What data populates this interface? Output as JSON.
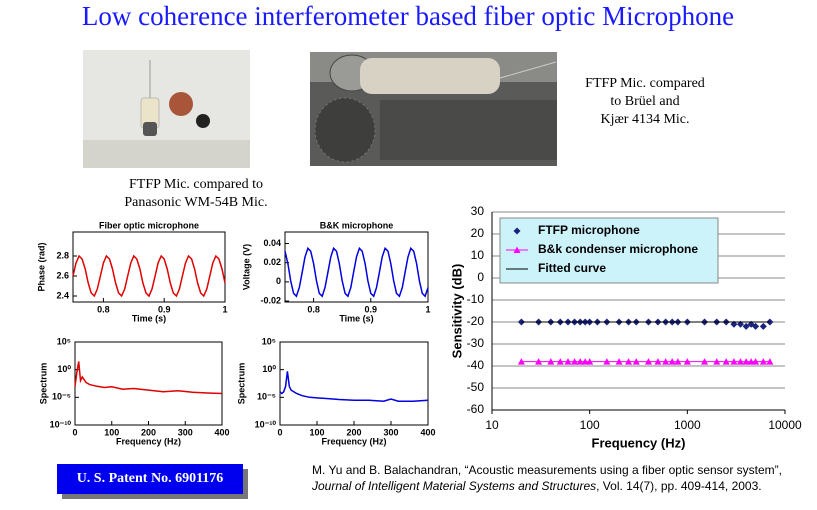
{
  "title": "Low coherence interferometer based fiber optic Microphone",
  "photo_captions": [
    [
      "FTFP Mic. compared to",
      "Panasonic WM-54B Mic."
    ],
    [
      "FTFP Mic. compared",
      "to Brüel and",
      "Kjær 4134 Mic."
    ]
  ],
  "chart_data": [
    {
      "type": "line",
      "title": "Fiber optic microphone",
      "x_label": "Time (s)",
      "y_label": "Phase (rad)",
      "xlim": [
        0.75,
        1.0
      ],
      "xticks": [
        0.8,
        0.9,
        1
      ],
      "ylim": [
        2.34,
        3.04
      ],
      "yticks": [
        2.4,
        2.6,
        2.8
      ],
      "series": [
        {
          "color": "#e00000",
          "x": [
            0.75,
            0.755,
            0.76,
            0.765,
            0.77,
            0.775,
            0.78,
            0.785,
            0.79,
            0.795,
            0.8,
            0.805,
            0.81,
            0.815,
            0.82,
            0.825,
            0.83,
            0.835,
            0.84,
            0.845,
            0.85,
            0.855,
            0.86,
            0.865,
            0.87,
            0.875,
            0.88,
            0.885,
            0.89,
            0.895,
            0.9,
            0.905,
            0.91,
            0.915,
            0.92,
            0.925,
            0.93,
            0.935,
            0.94,
            0.945,
            0.95,
            0.955,
            0.96,
            0.965,
            0.97,
            0.975,
            0.98,
            0.985,
            0.99,
            0.995,
            1.0
          ],
          "values": [
            2.6,
            2.73,
            2.8,
            2.77,
            2.67,
            2.53,
            2.43,
            2.4,
            2.47,
            2.6,
            2.73,
            2.8,
            2.77,
            2.67,
            2.53,
            2.43,
            2.4,
            2.47,
            2.6,
            2.73,
            2.8,
            2.77,
            2.67,
            2.53,
            2.43,
            2.4,
            2.47,
            2.6,
            2.73,
            2.8,
            2.77,
            2.67,
            2.53,
            2.43,
            2.4,
            2.47,
            2.6,
            2.73,
            2.8,
            2.77,
            2.67,
            2.53,
            2.43,
            2.4,
            2.47,
            2.6,
            2.73,
            2.8,
            2.77,
            2.67,
            2.53
          ]
        }
      ]
    },
    {
      "type": "line",
      "title": "B&K microphone",
      "x_label": "Time (s)",
      "y_label": "Voltage (V)",
      "xlim": [
        0.75,
        1.0
      ],
      "xticks": [
        0.8,
        0.9,
        1
      ],
      "ylim": [
        -0.021,
        0.052
      ],
      "yticks": [
        -0.02,
        0,
        0.02,
        0.04
      ],
      "series": [
        {
          "color": "#0000e0",
          "x": [
            0.75,
            0.755,
            0.76,
            0.765,
            0.77,
            0.775,
            0.78,
            0.785,
            0.79,
            0.795,
            0.8,
            0.805,
            0.81,
            0.815,
            0.82,
            0.825,
            0.83,
            0.835,
            0.84,
            0.845,
            0.85,
            0.855,
            0.86,
            0.865,
            0.87,
            0.875,
            0.88,
            0.885,
            0.89,
            0.895,
            0.9,
            0.905,
            0.91,
            0.915,
            0.92,
            0.925,
            0.93,
            0.935,
            0.94,
            0.945,
            0.95,
            0.955,
            0.96,
            0.965,
            0.97,
            0.975,
            0.98,
            0.985,
            0.99,
            0.995,
            1.0
          ],
          "values": [
            0.032,
            0.019,
            0.001,
            -0.012,
            -0.015,
            -0.006,
            0.01,
            0.026,
            0.035,
            0.032,
            0.019,
            0.001,
            -0.012,
            -0.015,
            -0.006,
            0.01,
            0.026,
            0.035,
            0.032,
            0.019,
            0.001,
            -0.012,
            -0.015,
            -0.006,
            0.01,
            0.026,
            0.035,
            0.032,
            0.019,
            0.001,
            -0.012,
            -0.015,
            -0.006,
            0.01,
            0.026,
            0.035,
            0.032,
            0.019,
            0.001,
            -0.012,
            -0.015,
            -0.006,
            0.01,
            0.026,
            0.035,
            0.032,
            0.019,
            0.001,
            -0.012,
            -0.015,
            -0.006
          ]
        }
      ]
    },
    {
      "type": "line",
      "x_label": "Frequency (Hz)",
      "y_label": "Spectrum",
      "log_y": true,
      "xlim": [
        0,
        400
      ],
      "xticks": [
        0,
        100,
        200,
        300,
        400
      ],
      "ylim": [
        1e-10,
        100000
      ],
      "yticks": [
        {
          "value": 1e-10,
          "label": "10⁻¹⁰"
        },
        {
          "value": 1e-05,
          "label": "10⁻⁵"
        },
        {
          "value": 1,
          "label": "10⁰"
        },
        {
          "value": 100000,
          "label": "10⁵"
        }
      ],
      "series": [
        {
          "color": "#e00000",
          "x": [
            0,
            5,
            10,
            15,
            20,
            30,
            40,
            60,
            80,
            100,
            130,
            160,
            200,
            240,
            280,
            320,
            360,
            400
          ],
          "values": [
            0.001,
            0.3,
            30,
            0.01,
            0.05,
            0.005,
            0.002,
            0.001,
            0.0006,
            0.0008,
            0.0003,
            0.0004,
            0.0002,
            0.0001,
            0.00015,
            8e-05,
            6e-05,
            5e-05
          ]
        }
      ]
    },
    {
      "type": "line",
      "x_label": "Frequency (Hz)",
      "y_label": "Spectrum",
      "log_y": true,
      "xlim": [
        0,
        400
      ],
      "xticks": [
        0,
        100,
        200,
        300,
        400
      ],
      "ylim": [
        1e-10,
        100000
      ],
      "yticks": [
        {
          "value": 1e-10,
          "label": "10⁻¹⁰"
        },
        {
          "value": 1e-05,
          "label": "10⁻⁵"
        },
        {
          "value": 1,
          "label": "10⁰"
        },
        {
          "value": 100000,
          "label": "10⁵"
        }
      ],
      "series": [
        {
          "color": "#0000e0",
          "x": [
            0,
            5,
            10,
            15,
            20,
            25,
            30,
            45,
            60,
            80,
            100,
            130,
            160,
            200,
            240,
            280,
            300,
            320,
            360,
            400
          ],
          "values": [
            0.0001,
            5e-05,
            0.0001,
            0.001,
            0.5,
            0.001,
            0.0002,
            5e-05,
            2e-05,
            1e-05,
            8e-06,
            6e-06,
            4e-06,
            3e-06,
            3e-06,
            2e-06,
            5e-06,
            2e-06,
            2e-06,
            3e-06
          ]
        }
      ]
    },
    {
      "type": "scatter",
      "x_label": "Frequency (Hz)",
      "y_label": "Sensitivity (dB)",
      "log_x": true,
      "grid": true,
      "legend": "top-left",
      "xlim": [
        10,
        10000
      ],
      "xticks": [
        10,
        100,
        1000,
        10000
      ],
      "ylim": [
        -60,
        30
      ],
      "yticks": [
        -60,
        -50,
        -40,
        -30,
        -20,
        -10,
        0,
        10,
        20,
        30
      ],
      "series": [
        {
          "name": "FTFP microphone",
          "color": "#1a237e",
          "draw": "diamond",
          "x": [
            20,
            30,
            40,
            50,
            60,
            70,
            80,
            90,
            100,
            120,
            150,
            200,
            250,
            300,
            400,
            500,
            600,
            700,
            800,
            1000,
            1500,
            2000,
            2500,
            3000,
            3500,
            4000,
            4500,
            5000,
            6000,
            7000
          ],
          "values": [
            -20,
            -20,
            -20,
            -20,
            -20,
            -20,
            -20,
            -20,
            -20,
            -20,
            -20,
            -20,
            -20,
            -20,
            -20,
            -20,
            -20,
            -20,
            -20,
            -20,
            -20,
            -20,
            -20,
            -21,
            -21,
            -22,
            -21,
            -22,
            -22,
            -20
          ]
        },
        {
          "name": "B&k condenser microphone",
          "color": "#ff00ff",
          "draw": "triangle",
          "x": [
            20,
            30,
            40,
            50,
            60,
            70,
            80,
            90,
            100,
            150,
            200,
            250,
            300,
            400,
            500,
            600,
            700,
            800,
            1000,
            1500,
            2000,
            2500,
            3000,
            3500,
            4000,
            4500,
            5000,
            6000,
            7000
          ],
          "values": [
            -38,
            -38,
            -38,
            -38,
            -38,
            -38,
            -38,
            -38,
            -38,
            -38,
            -38,
            -38,
            -38,
            -38,
            -38,
            -38,
            -38,
            -38,
            -38,
            -38,
            -38,
            -38,
            -38,
            -38,
            -38,
            -38,
            -38,
            -38,
            -38
          ]
        },
        {
          "name": "Fitted curve",
          "color": "#000000",
          "draw": "line",
          "x": [
            20,
            7000
          ],
          "values": [
            -20,
            -20
          ]
        }
      ]
    }
  ],
  "patent": "U. S. Patent No. 6901176",
  "citation": {
    "authors": "M. Yu and B. Balachandran, “Acoustic measurements using a fiber optic sensor system”, ",
    "journal": "Journal of Intelligent Material Systems and Structures",
    "details": ", Vol. 14(7), pp. 409-414, 2003."
  }
}
